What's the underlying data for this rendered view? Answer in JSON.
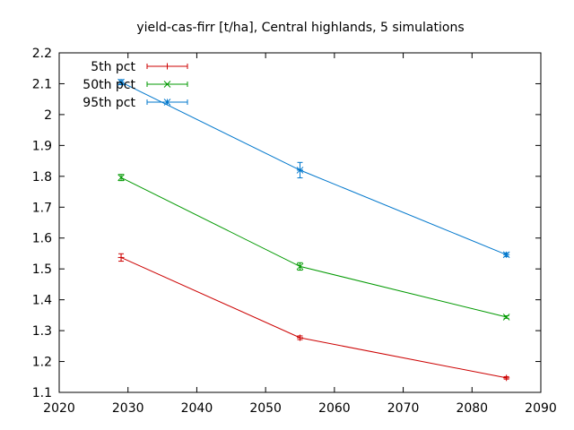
{
  "chart_data": {
    "type": "line",
    "title": "yield-cas-firr [t/ha], Central highlands, 5 simulations",
    "xlabel": "",
    "ylabel": "",
    "xlim": [
      2020,
      2090
    ],
    "ylim": [
      1.1,
      2.2
    ],
    "x_ticks": [
      2020,
      2030,
      2040,
      2050,
      2060,
      2070,
      2080,
      2090
    ],
    "y_ticks": [
      1.1,
      1.2,
      1.3,
      1.4,
      1.5,
      1.6,
      1.7,
      1.8,
      1.9,
      2,
      2.1,
      2.2
    ],
    "x_tick_labels": [
      "2020",
      "2030",
      "2040",
      "2050",
      "2060",
      "2070",
      "2080",
      "2090"
    ],
    "y_tick_labels": [
      "1.1",
      "1.2",
      "1.3",
      "1.4",
      "1.5",
      "1.6",
      "1.7",
      "1.8",
      "1.9",
      "2",
      "2.1",
      "2.2"
    ],
    "grid": false,
    "legend_position": "top-left",
    "x": [
      2029,
      2055,
      2085
    ],
    "series": [
      {
        "name": "5th pct",
        "color": "#cc0000",
        "marker": "plus",
        "values": [
          1.537,
          1.277,
          1.147
        ],
        "errors": [
          0.012,
          0.006,
          0.004
        ]
      },
      {
        "name": "50th pct",
        "color": "#009900",
        "marker": "cross",
        "values": [
          1.796,
          1.508,
          1.344
        ],
        "errors": [
          0.01,
          0.012,
          0.004
        ]
      },
      {
        "name": "95th pct",
        "color": "#0077cc",
        "marker": "star",
        "values": [
          2.105,
          1.82,
          1.546
        ],
        "errors": [
          0.008,
          0.025,
          0.006
        ]
      }
    ]
  }
}
